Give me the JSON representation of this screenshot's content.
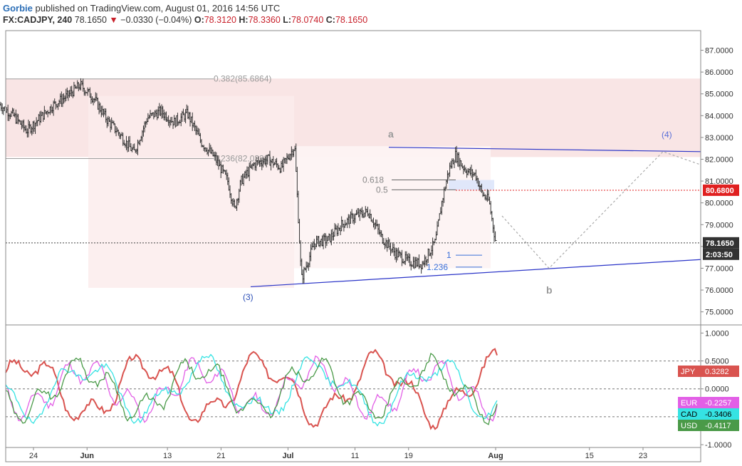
{
  "header": {
    "author": "Gorbie",
    "published_text": "published on TradingView.com, August 01, 2016 14:56 UTC",
    "symbol": "FX:CADJPY, 240",
    "last": "78.1650",
    "change": "−0.0330 (−0.04%)",
    "o_label": "O:",
    "o": "78.3120",
    "h_label": "H:",
    "h": "78.3360",
    "l_label": "L:",
    "l": "78.0740",
    "c_label": "C:",
    "c": "78.1650"
  },
  "chart_data": {
    "type": "candlestick",
    "price_axis_ticks": [
      "87.0000",
      "86.0000",
      "85.0000",
      "84.0000",
      "83.0000",
      "82.0000",
      "81.0000",
      "80.0000",
      "79.0000",
      "78.0000",
      "77.0000",
      "76.0000",
      "75.0000"
    ],
    "ylim": [
      74.4,
      87.9
    ],
    "x_axis_labels": [
      "24",
      "Jun",
      "13",
      "21",
      "Jul",
      "11",
      "19",
      "Aug",
      "15",
      "23"
    ],
    "price_series_anchors": [
      {
        "date": "May 19",
        "price": 84.5
      },
      {
        "date": "May 21",
        "price": 84.0
      },
      {
        "date": "May 23",
        "price": 83.3
      },
      {
        "date": "May 25",
        "price": 83.9
      },
      {
        "date": "May 27",
        "price": 84.5
      },
      {
        "date": "May 29",
        "price": 84.9
      },
      {
        "date": "May 31",
        "price": 85.4
      },
      {
        "date": "Jun 2",
        "price": 84.8
      },
      {
        "date": "Jun 4",
        "price": 83.8
      },
      {
        "date": "Jun 6",
        "price": 83.1
      },
      {
        "date": "Jun 8",
        "price": 82.3
      },
      {
        "date": "Jun 10",
        "price": 83.9
      },
      {
        "date": "Jun 12",
        "price": 84.2
      },
      {
        "date": "Jun 14",
        "price": 83.7
      },
      {
        "date": "Jun 16",
        "price": 84.1
      },
      {
        "date": "Jun 18",
        "price": 82.8
      },
      {
        "date": "Jun 20",
        "price": 82.1
      },
      {
        "date": "Jun 22",
        "price": 81.0
      },
      {
        "date": "Jun 23",
        "price": 79.7
      },
      {
        "date": "Jun 24",
        "price": 81.0
      },
      {
        "date": "Jun 26",
        "price": 81.8
      },
      {
        "date": "Jun 28",
        "price": 82.0
      },
      {
        "date": "Jun 30",
        "price": 81.6
      },
      {
        "date": "Jul 2",
        "price": 82.6
      },
      {
        "date": "Jul 3",
        "price": 76.5
      },
      {
        "date": "Jul 5",
        "price": 78.2
      },
      {
        "date": "Jul 7",
        "price": 78.3
      },
      {
        "date": "Jul 9",
        "price": 79.0
      },
      {
        "date": "Jul 11",
        "price": 79.4
      },
      {
        "date": "Jul 13",
        "price": 79.6
      },
      {
        "date": "Jul 15",
        "price": 78.4
      },
      {
        "date": "Jul 17",
        "price": 77.7
      },
      {
        "date": "Jul 19",
        "price": 77.3
      },
      {
        "date": "Jul 21",
        "price": 77.2
      },
      {
        "date": "Jul 23",
        "price": 78.2
      },
      {
        "date": "Jul 24",
        "price": 80.1
      },
      {
        "date": "Jul 25",
        "price": 81.5
      },
      {
        "date": "Jul 26",
        "price": 82.2
      },
      {
        "date": "Jul 27",
        "price": 81.7
      },
      {
        "date": "Jul 28",
        "price": 81.4
      },
      {
        "date": "Jul 29",
        "price": 81.3
      },
      {
        "date": "Jul 30",
        "price": 80.4
      },
      {
        "date": "Jul 31",
        "price": 80.1
      },
      {
        "date": "Aug 1",
        "price": 78.2
      }
    ],
    "fib_levels": [
      {
        "label": "0.382(85.6864)",
        "price": 85.6864
      },
      {
        "label": "0.236(82.0332)",
        "price": 82.0332
      },
      {
        "label": "0.618",
        "price": 81.05
      },
      {
        "label": "0.5",
        "price": 80.6
      }
    ],
    "extension_labels": [
      {
        "label": "1",
        "price": 77.6
      },
      {
        "label": "1.236",
        "price": 77.05
      }
    ],
    "wave_labels": [
      "a",
      "b",
      "(3)",
      "(4)"
    ],
    "price_marks": [
      {
        "label": "80.6800",
        "price": 80.58,
        "color": "#e02020"
      },
      {
        "label": "78.1650",
        "price": 78.165,
        "color": "#333333"
      },
      {
        "label": "2:03:50",
        "price": 77.6,
        "color": "#333333"
      }
    ],
    "indicator": {
      "axis_ticks": [
        "1.0000",
        "0.5000",
        "0.0000",
        "-0.5000",
        "-1.0000"
      ],
      "ylim": [
        -1.05,
        1.12
      ],
      "series": [
        {
          "name": "JPY",
          "last": "0.3282",
          "color": "#d9534f"
        },
        {
          "name": "EUR",
          "last": "-0.2257",
          "color": "#e25fe6"
        },
        {
          "name": "CAD",
          "last": "-0.3406",
          "color": "#35e3e3"
        },
        {
          "name": "USD",
          "last": "-0.4117",
          "color": "#4a9a48"
        }
      ]
    }
  }
}
